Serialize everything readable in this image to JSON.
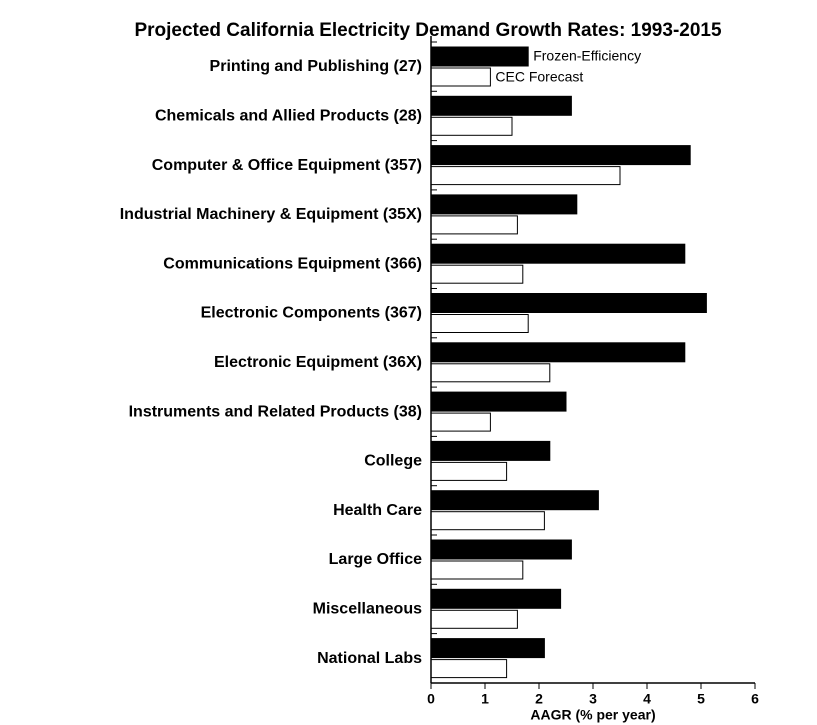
{
  "chart_data": {
    "type": "bar",
    "orientation": "horizontal",
    "title": "Projected California Electricity Demand Growth Rates: 1993-2015",
    "x_label": "AAGR (% per year)",
    "categories": [
      "Printing and Publishing (27)",
      "Chemicals and Allied Products (28)",
      "Computer & Office Equipment (357)",
      "Industrial Machinery & Equipment (35X)",
      "Communications Equipment (366)",
      "Electronic Components (367)",
      "Electronic Equipment (36X)",
      "Instruments and Related Products (38)",
      "College",
      "Health Care",
      "Large Office",
      "Miscellaneous",
      "National Labs"
    ],
    "series": [
      {
        "name": "Frozen-Efficiency",
        "color": "#000000",
        "values": [
          1.8,
          2.6,
          4.8,
          2.7,
          4.7,
          5.1,
          4.7,
          2.5,
          2.2,
          3.1,
          2.6,
          2.4,
          2.1
        ]
      },
      {
        "name": "CEC Forecast",
        "color": "#ffffff",
        "values": [
          1.1,
          1.5,
          3.5,
          1.6,
          1.7,
          1.8,
          2.2,
          1.1,
          1.4,
          2.1,
          1.7,
          1.6,
          1.4
        ]
      }
    ],
    "xlim": [
      0,
      6
    ],
    "xticks": [
      0,
      1,
      2,
      3,
      4,
      5,
      6
    ]
  }
}
